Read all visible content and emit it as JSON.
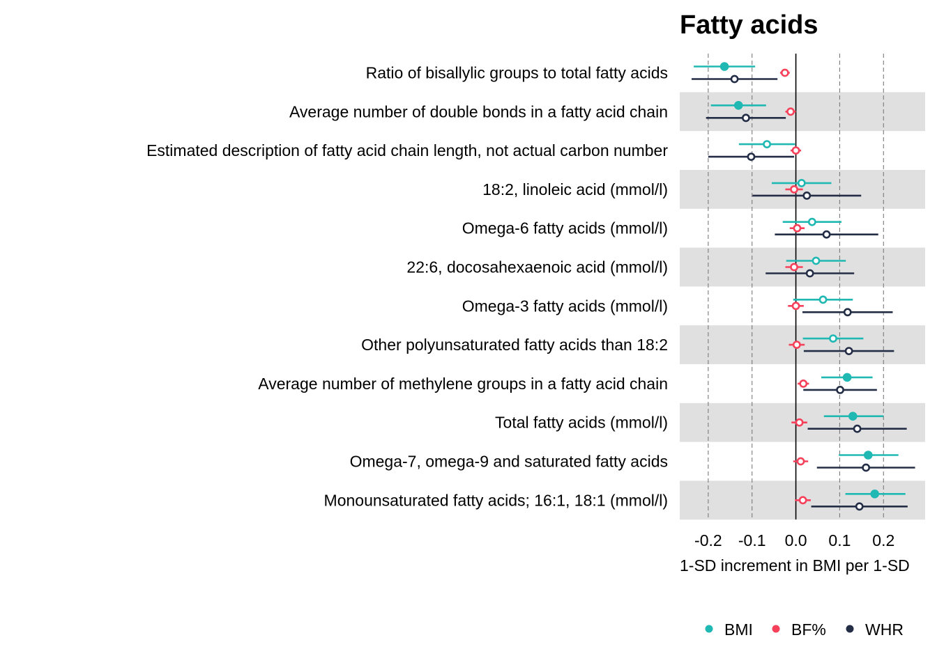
{
  "chart_data": {
    "type": "scatter",
    "title": "Fatty acids",
    "xlabel": "1-SD increment in BMI per 1-SD",
    "xlim": [
      -0.265,
      0.295
    ],
    "xticks": [
      -0.2,
      -0.1,
      0.0,
      0.1,
      0.2
    ],
    "xtick_labels": [
      "-0.2",
      "-0.1",
      "0.0",
      "0.1",
      "0.2"
    ],
    "grid": "dashed vertical",
    "legend_position": "bottom",
    "categories": [
      "Ratio of bisallylic groups to total fatty acids",
      "Average number of double bonds in a fatty acid chain",
      "Estimated description of fatty acid chain length, not actual carbon number",
      "18:2, linoleic acid (mmol/l)",
      "Omega-6 fatty acids (mmol/l)",
      "22:6, docosahexaenoic acid (mmol/l)",
      "Omega-3 fatty acids (mmol/l)",
      "Other polyunsaturated fatty acids than 18:2",
      "Average number of methylene groups in a fatty acid chain",
      "Total fatty acids (mmol/l)",
      "Omega-7, omega-9 and saturated fatty acids",
      "Monounsaturated fatty acids; 16:1, 18:1 (mmol/l)"
    ],
    "series": [
      {
        "name": "BMI",
        "color": "#1fb8b3",
        "values": [
          -0.163,
          -0.131,
          -0.066,
          0.013,
          0.037,
          0.046,
          0.062,
          0.085,
          0.117,
          0.13,
          0.165,
          0.18
        ],
        "lower": [
          -0.233,
          -0.194,
          -0.13,
          -0.055,
          -0.03,
          -0.022,
          -0.006,
          0.016,
          0.058,
          0.064,
          0.098,
          0.113
        ],
        "upper": [
          -0.093,
          -0.068,
          -0.002,
          0.081,
          0.104,
          0.114,
          0.13,
          0.154,
          0.175,
          0.2,
          0.234,
          0.25
        ],
        "filled": [
          true,
          true,
          false,
          false,
          false,
          false,
          false,
          false,
          true,
          true,
          true,
          true
        ]
      },
      {
        "name": "BF%",
        "color": "#f7405a",
        "values": [
          -0.025,
          -0.012,
          0.0,
          -0.004,
          0.003,
          -0.004,
          0.0,
          0.002,
          0.017,
          0.008,
          0.011,
          0.016
        ],
        "lower": [
          -0.036,
          -0.024,
          -0.012,
          -0.024,
          -0.014,
          -0.024,
          -0.018,
          -0.016,
          0.004,
          -0.01,
          -0.006,
          -0.002
        ],
        "upper": [
          -0.014,
          0.0,
          0.012,
          0.016,
          0.02,
          0.016,
          0.018,
          0.02,
          0.03,
          0.026,
          0.028,
          0.034
        ]
      },
      {
        "name": "WHR",
        "color": "#232d46",
        "values": [
          -0.14,
          -0.114,
          -0.102,
          0.025,
          0.07,
          0.032,
          0.118,
          0.121,
          0.101,
          0.14,
          0.16,
          0.145
        ],
        "lower": [
          -0.238,
          -0.205,
          -0.2,
          -0.099,
          -0.048,
          -0.069,
          0.015,
          0.018,
          0.017,
          0.027,
          0.048,
          0.035
        ],
        "upper": [
          -0.042,
          -0.023,
          -0.004,
          0.149,
          0.188,
          0.133,
          0.221,
          0.224,
          0.185,
          0.253,
          0.272,
          0.255
        ]
      }
    ]
  }
}
